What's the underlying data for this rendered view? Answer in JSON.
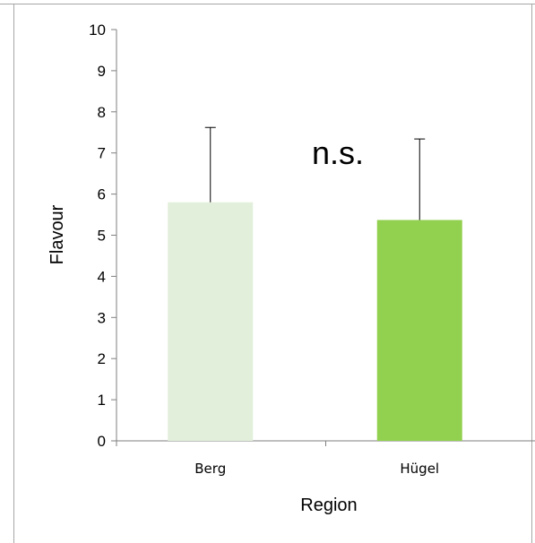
{
  "chart_data": {
    "type": "bar",
    "categories": [
      "Berg",
      "Hügel"
    ],
    "values": [
      5.8,
      5.37
    ],
    "error_upper": [
      1.82,
      1.97
    ],
    "colors": [
      "#e2efda",
      "#92d050"
    ],
    "xlabel": "Region",
    "ylabel": "Flavour",
    "ylim": [
      0,
      10
    ],
    "yticks": [
      0,
      1,
      2,
      3,
      4,
      5,
      6,
      7,
      8,
      9,
      10
    ],
    "annotation": "n.s.",
    "grid": false
  }
}
